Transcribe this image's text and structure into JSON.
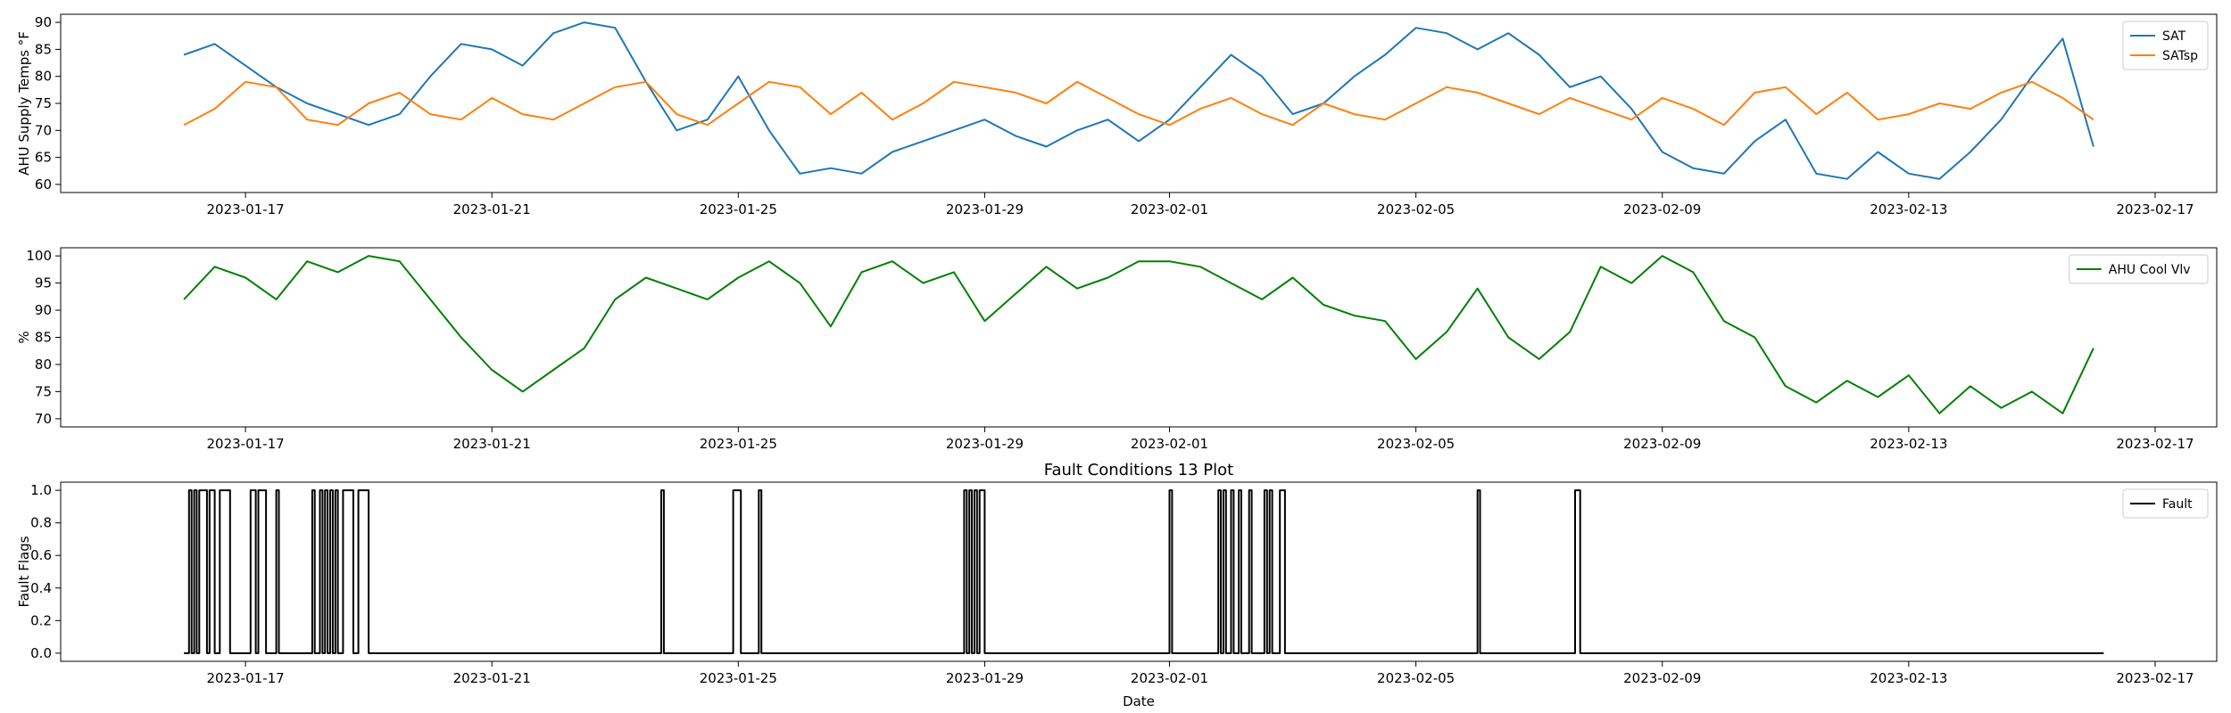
{
  "chart_data": [
    {
      "type": "line",
      "title": "",
      "xlabel": "",
      "ylabel": "AHU Supply Temps °F",
      "x_range": [
        "2023-01-16",
        "2023-02-16"
      ],
      "xticks": [
        "2023-01-17",
        "2023-01-21",
        "2023-01-25",
        "2023-01-29",
        "2023-02-01",
        "2023-02-05",
        "2023-02-09",
        "2023-02-13",
        "2023-02-17"
      ],
      "ylim": [
        58.5,
        91.5
      ],
      "yticks": [
        60,
        65,
        70,
        75,
        80,
        85,
        90
      ],
      "legend": "top-right",
      "grid": false,
      "series": [
        {
          "name": "SAT",
          "color": "#1f77b4",
          "x": [
            "2023-01-16",
            "2023-01-16T12:00",
            "2023-01-17",
            "2023-01-17T12:00",
            "2023-01-18",
            "2023-01-18T12:00",
            "2023-01-19",
            "2023-01-19T12:00",
            "2023-01-20",
            "2023-01-20T12:00",
            "2023-01-21",
            "2023-01-21T12:00",
            "2023-01-22",
            "2023-01-22T12:00",
            "2023-01-23",
            "2023-01-23T12:00",
            "2023-01-24",
            "2023-01-24T12:00",
            "2023-01-25",
            "2023-01-25T12:00",
            "2023-01-26",
            "2023-01-26T12:00",
            "2023-01-27",
            "2023-01-27T12:00",
            "2023-01-28",
            "2023-01-28T12:00",
            "2023-01-29",
            "2023-01-29T12:00",
            "2023-01-30",
            "2023-01-30T12:00",
            "2023-01-31",
            "2023-01-31T12:00",
            "2023-02-01",
            "2023-02-01T12:00",
            "2023-02-02",
            "2023-02-02T12:00",
            "2023-02-03",
            "2023-02-03T12:00",
            "2023-02-04",
            "2023-02-04T12:00",
            "2023-02-05",
            "2023-02-05T12:00",
            "2023-02-06",
            "2023-02-06T12:00",
            "2023-02-07",
            "2023-02-07T12:00",
            "2023-02-08",
            "2023-02-08T12:00",
            "2023-02-09",
            "2023-02-09T12:00",
            "2023-02-10",
            "2023-02-10T12:00",
            "2023-02-11",
            "2023-02-11T12:00",
            "2023-02-12",
            "2023-02-12T12:00",
            "2023-02-13",
            "2023-02-13T12:00",
            "2023-02-14",
            "2023-02-14T12:00",
            "2023-02-15",
            "2023-02-15T12:00",
            "2023-02-16"
          ],
          "values": [
            84,
            86,
            82,
            78,
            75,
            73,
            71,
            73,
            80,
            86,
            85,
            82,
            88,
            90,
            89,
            79,
            70,
            72,
            80,
            70,
            62,
            63,
            62,
            66,
            68,
            70,
            72,
            69,
            67,
            70,
            72,
            68,
            72,
            78,
            84,
            80,
            73,
            75,
            80,
            84,
            89,
            88,
            85,
            88,
            84,
            78,
            80,
            74,
            66,
            63,
            62,
            68,
            72,
            62,
            61,
            66,
            62,
            61,
            66,
            72,
            80,
            87,
            67
          ]
        },
        {
          "name": "SATsp",
          "color": "#ff7f0e",
          "x": [
            "2023-01-16",
            "2023-01-16T12:00",
            "2023-01-17",
            "2023-01-17T12:00",
            "2023-01-18",
            "2023-01-18T12:00",
            "2023-01-19",
            "2023-01-19T12:00",
            "2023-01-20",
            "2023-01-20T12:00",
            "2023-01-21",
            "2023-01-21T12:00",
            "2023-01-22",
            "2023-01-22T12:00",
            "2023-01-23",
            "2023-01-23T12:00",
            "2023-01-24",
            "2023-01-24T12:00",
            "2023-01-25",
            "2023-01-25T12:00",
            "2023-01-26",
            "2023-01-26T12:00",
            "2023-01-27",
            "2023-01-27T12:00",
            "2023-01-28",
            "2023-01-28T12:00",
            "2023-01-29",
            "2023-01-29T12:00",
            "2023-01-30",
            "2023-01-30T12:00",
            "2023-01-31",
            "2023-01-31T12:00",
            "2023-02-01",
            "2023-02-01T12:00",
            "2023-02-02",
            "2023-02-02T12:00",
            "2023-02-03",
            "2023-02-03T12:00",
            "2023-02-04",
            "2023-02-04T12:00",
            "2023-02-05",
            "2023-02-05T12:00",
            "2023-02-06",
            "2023-02-06T12:00",
            "2023-02-07",
            "2023-02-07T12:00",
            "2023-02-08",
            "2023-02-08T12:00",
            "2023-02-09",
            "2023-02-09T12:00",
            "2023-02-10",
            "2023-02-10T12:00",
            "2023-02-11",
            "2023-02-11T12:00",
            "2023-02-12",
            "2023-02-12T12:00",
            "2023-02-13",
            "2023-02-13T12:00",
            "2023-02-14",
            "2023-02-14T12:00",
            "2023-02-15",
            "2023-02-15T12:00",
            "2023-02-16"
          ],
          "values": [
            71,
            74,
            79,
            78,
            72,
            71,
            75,
            77,
            73,
            72,
            76,
            73,
            72,
            75,
            78,
            79,
            73,
            71,
            75,
            79,
            78,
            73,
            77,
            72,
            75,
            79,
            78,
            77,
            75,
            79,
            76,
            73,
            71,
            74,
            76,
            73,
            71,
            75,
            73,
            72,
            75,
            78,
            77,
            75,
            73,
            76,
            74,
            72,
            76,
            74,
            71,
            77,
            78,
            73,
            77,
            72,
            73,
            75,
            74,
            77,
            79,
            76,
            72
          ]
        }
      ]
    },
    {
      "type": "line",
      "title": "",
      "xlabel": "",
      "ylabel": "%",
      "x_range": [
        "2023-01-16",
        "2023-02-16"
      ],
      "xticks": [
        "2023-01-17",
        "2023-01-21",
        "2023-01-25",
        "2023-01-29",
        "2023-02-01",
        "2023-02-05",
        "2023-02-09",
        "2023-02-13",
        "2023-02-17"
      ],
      "ylim": [
        68.5,
        101.5
      ],
      "yticks": [
        70,
        75,
        80,
        85,
        90,
        95,
        100
      ],
      "legend": "top-right",
      "grid": false,
      "series": [
        {
          "name": "AHU Cool Vlv",
          "color": "#008000",
          "x": [
            "2023-01-16",
            "2023-01-16T12:00",
            "2023-01-17",
            "2023-01-17T12:00",
            "2023-01-18",
            "2023-01-18T12:00",
            "2023-01-19",
            "2023-01-19T12:00",
            "2023-01-20",
            "2023-01-20T12:00",
            "2023-01-21",
            "2023-01-21T12:00",
            "2023-01-22",
            "2023-01-22T12:00",
            "2023-01-23",
            "2023-01-23T12:00",
            "2023-01-24",
            "2023-01-24T12:00",
            "2023-01-25",
            "2023-01-25T12:00",
            "2023-01-26",
            "2023-01-26T12:00",
            "2023-01-27",
            "2023-01-27T12:00",
            "2023-01-28",
            "2023-01-28T12:00",
            "2023-01-29",
            "2023-01-29T12:00",
            "2023-01-30",
            "2023-01-30T12:00",
            "2023-01-31",
            "2023-01-31T12:00",
            "2023-02-01",
            "2023-02-01T12:00",
            "2023-02-02",
            "2023-02-02T12:00",
            "2023-02-03",
            "2023-02-03T12:00",
            "2023-02-04",
            "2023-02-04T12:00",
            "2023-02-05",
            "2023-02-05T12:00",
            "2023-02-06",
            "2023-02-06T12:00",
            "2023-02-07",
            "2023-02-07T12:00",
            "2023-02-08",
            "2023-02-08T12:00",
            "2023-02-09",
            "2023-02-09T12:00",
            "2023-02-10",
            "2023-02-10T12:00",
            "2023-02-11",
            "2023-02-11T12:00",
            "2023-02-12",
            "2023-02-12T12:00",
            "2023-02-13",
            "2023-02-13T12:00",
            "2023-02-14",
            "2023-02-14T12:00",
            "2023-02-15",
            "2023-02-15T12:00",
            "2023-02-16"
          ],
          "values": [
            92,
            98,
            96,
            92,
            99,
            97,
            100,
            99,
            92,
            85,
            79,
            75,
            79,
            83,
            92,
            96,
            94,
            92,
            96,
            99,
            95,
            87,
            97,
            99,
            95,
            97,
            88,
            93,
            98,
            94,
            96,
            99,
            99,
            98,
            95,
            92,
            96,
            91,
            89,
            88,
            81,
            86,
            94,
            85,
            81,
            86,
            98,
            95,
            100,
            97,
            88,
            85,
            76,
            73,
            77,
            74,
            78,
            71,
            76,
            72,
            75,
            71,
            83
          ]
        }
      ]
    },
    {
      "type": "line",
      "title": "Fault Conditions 13 Plot",
      "xlabel": "Date",
      "ylabel": "Fault Flags",
      "x_range": [
        "2023-01-16",
        "2023-02-16"
      ],
      "xticks": [
        "2023-01-17",
        "2023-01-21",
        "2023-01-25",
        "2023-01-29",
        "2023-02-01",
        "2023-02-05",
        "2023-02-09",
        "2023-02-13",
        "2023-02-17"
      ],
      "ylim": [
        -0.05,
        1.05
      ],
      "yticks": [
        "0.0",
        "0.2",
        "0.4",
        "0.6",
        "0.8",
        "1.0"
      ],
      "legend": "top-right",
      "grid": false,
      "series": [
        {
          "name": "Fault",
          "color": "#000000",
          "step": true,
          "x": [
            "2023-01-16",
            "2023-01-16T02:00",
            "2023-01-16T03:00",
            "2023-01-16T04:00",
            "2023-01-16T05:00",
            "2023-01-16T06:00",
            "2023-01-16T07:00",
            "2023-01-16T09:00",
            "2023-01-16T10:00",
            "2023-01-16T12:00",
            "2023-01-16T14:00",
            "2023-01-16T16:00",
            "2023-01-16T18:00",
            "2023-01-17T02:00",
            "2023-01-17T04:00",
            "2023-01-17T05:00",
            "2023-01-17T07:00",
            "2023-01-17T08:00",
            "2023-01-17T12:00",
            "2023-01-17T13:00",
            "2023-01-17T14:00",
            "2023-01-18T02:00",
            "2023-01-18T03:00",
            "2023-01-18T05:00",
            "2023-01-18T06:00",
            "2023-01-18T07:00",
            "2023-01-18T08:00",
            "2023-01-18T09:00",
            "2023-01-18T10:00",
            "2023-01-18T11:00",
            "2023-01-18T12:00",
            "2023-01-18T14:00",
            "2023-01-18T16:00",
            "2023-01-18T18:00",
            "2023-01-18T20:00",
            "2023-01-18T22:00",
            "2023-01-19T00:00",
            "2023-01-19T02:00",
            "2023-01-19T04:00",
            "2023-01-23T18:00",
            "2023-01-23T19:00",
            "2023-01-24T22:00",
            "2023-01-25T00:00",
            "2023-01-25T01:00",
            "2023-01-25T02:00",
            "2023-01-25T08:00",
            "2023-01-25T09:00",
            "2023-01-25T10:00",
            "2023-01-28T16:00",
            "2023-01-28T17:00",
            "2023-01-28T18:00",
            "2023-01-28T19:00",
            "2023-01-28T20:00",
            "2023-01-28T21:00",
            "2023-01-28T22:00",
            "2023-01-28T23:00",
            "2023-01-29T00:00",
            "2023-02-01T00:00",
            "2023-02-01T01:00",
            "2023-02-01T19:00",
            "2023-02-01T20:00",
            "2023-02-01T21:00",
            "2023-02-01T22:00",
            "2023-02-02T00:00",
            "2023-02-02T01:00",
            "2023-02-02T03:00",
            "2023-02-02T04:00",
            "2023-02-02T07:00",
            "2023-02-02T08:00",
            "2023-02-02T13:00",
            "2023-02-02T14:00",
            "2023-02-02T15:00",
            "2023-02-02T16:00",
            "2023-02-02T19:00",
            "2023-02-02T20:00",
            "2023-02-02T21:00",
            "2023-02-02T22:00",
            "2023-02-06T00:00",
            "2023-02-06T01:00",
            "2023-02-07T14:00",
            "2023-02-07T16:00",
            "2023-02-16T04:00"
          ],
          "values": [
            0,
            1,
            0,
            1,
            0,
            1,
            1,
            0,
            1,
            0,
            1,
            1,
            0,
            1,
            0,
            1,
            1,
            0,
            1,
            0,
            0,
            1,
            0,
            1,
            0,
            1,
            0,
            1,
            0,
            1,
            0,
            1,
            1,
            0,
            1,
            1,
            0,
            0,
            0,
            1,
            0,
            1,
            1,
            0,
            0,
            1,
            0,
            0,
            1,
            0,
            1,
            0,
            1,
            0,
            1,
            1,
            0,
            1,
            0,
            1,
            0,
            1,
            0,
            1,
            0,
            1,
            0,
            1,
            0,
            1,
            0,
            1,
            0,
            1,
            1,
            0,
            0,
            1,
            0,
            1,
            0,
            0
          ]
        }
      ]
    }
  ]
}
